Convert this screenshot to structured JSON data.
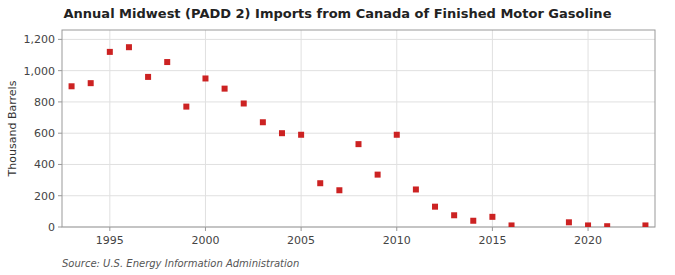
{
  "chart_data": {
    "type": "scatter",
    "title": "Annual Midwest (PADD 2) Imports from Canada of Finished Motor Gasoline",
    "ylabel": "Thousand Barrels",
    "annotations": [
      "Source: U.S. Energy Information Administration"
    ],
    "x": [
      1993,
      1994,
      1995,
      1996,
      1997,
      1998,
      1999,
      2000,
      2001,
      2002,
      2003,
      2004,
      2005,
      2006,
      2007,
      2008,
      2009,
      2010,
      2011,
      2012,
      2013,
      2014,
      2015,
      2016,
      2019,
      2020,
      2021,
      2023
    ],
    "values": [
      900,
      920,
      1120,
      1150,
      960,
      1055,
      770,
      950,
      885,
      790,
      670,
      600,
      590,
      280,
      235,
      530,
      335,
      590,
      240,
      130,
      75,
      40,
      65,
      10,
      30,
      10,
      5,
      10
    ],
    "color": "#cc2222",
    "marker": "square",
    "xlim": [
      1992.5,
      2023.5
    ],
    "ylim": [
      0,
      1260
    ],
    "xticks": [
      1995,
      2000,
      2005,
      2010,
      2015,
      2020
    ],
    "yticks": [
      0,
      200,
      400,
      600,
      800,
      {
        "value": 1000,
        "label": "1,000"
      },
      {
        "value": 1200,
        "label": "1,200"
      }
    ],
    "grid": true
  }
}
